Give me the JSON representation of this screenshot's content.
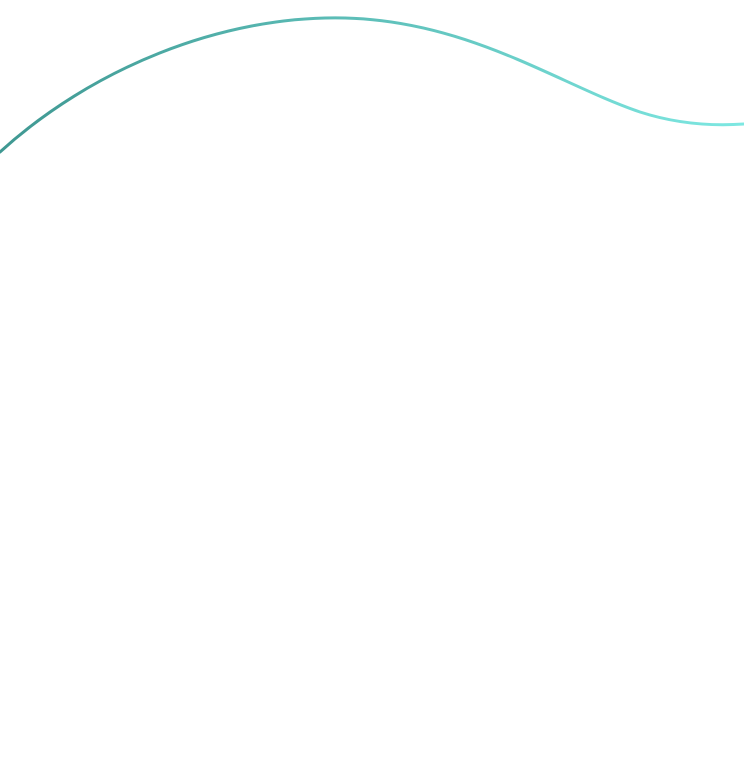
{
  "decoration": {
    "background_color": "#ffffff",
    "curve_gradient_start": "#3f9892",
    "curve_gradient_end": "#7ee8e2",
    "icon": "wave-curve"
  }
}
